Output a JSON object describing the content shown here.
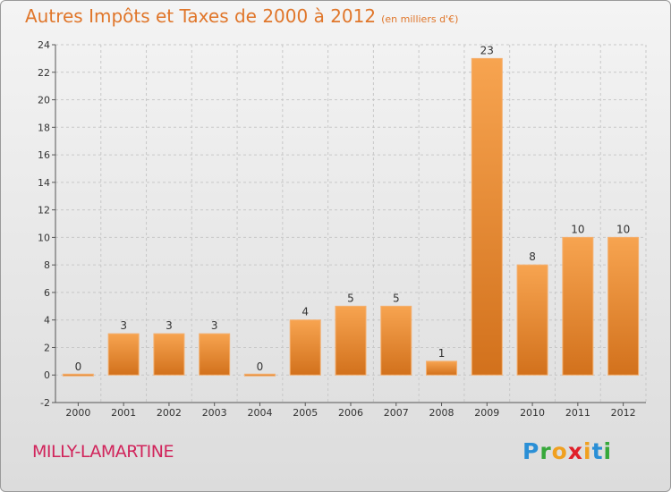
{
  "title": "Autres Impôts et Taxes de 2000 à 2012",
  "unit": "(en milliers d'€)",
  "commune": "MILLY-LAMARTINE",
  "logo_letters": [
    "P",
    "r",
    "o",
    "x",
    "i",
    "t",
    "i"
  ],
  "colors": {
    "bar": "#f0922e",
    "bar_dark": "#d2711c",
    "title": "#e0762a",
    "commune": "#d1245b"
  },
  "chart_data": {
    "type": "bar",
    "categories": [
      "2000",
      "2001",
      "2002",
      "2003",
      "2004",
      "2005",
      "2006",
      "2007",
      "2008",
      "2009",
      "2010",
      "2011",
      "2012"
    ],
    "values": [
      0,
      3,
      3,
      3,
      0,
      4,
      5,
      5,
      1,
      23,
      8,
      10,
      10
    ],
    "value_labels": [
      "0",
      "3",
      "3",
      "3",
      "0",
      "4",
      "5",
      "5",
      "1",
      "23",
      "8",
      "10",
      "10"
    ],
    "yticks": [
      -2,
      0,
      2,
      4,
      6,
      8,
      10,
      12,
      14,
      16,
      18,
      20,
      22,
      24
    ],
    "ylim": [
      -2,
      24
    ],
    "grid": true
  }
}
